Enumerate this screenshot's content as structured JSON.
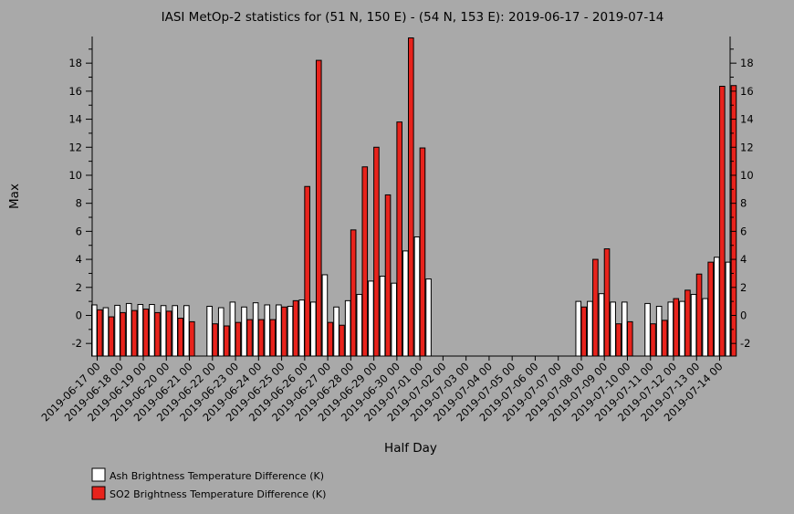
{
  "chart_data": {
    "type": "bar",
    "title": "IASI MetOp-2 statistics for (51 N, 150 E) - (54 N, 153 E): 2019-06-17 - 2019-07-14",
    "xlabel": "Half Day",
    "ylabel": "Max",
    "ylim": [
      -2.9,
      19.9
    ],
    "yticks": [
      -2,
      0,
      2,
      4,
      6,
      8,
      10,
      12,
      14,
      16,
      18
    ],
    "categories": [
      "2019-06-17 00",
      "2019-06-17 12",
      "2019-06-18 00",
      "2019-06-18 12",
      "2019-06-19 00",
      "2019-06-19 12",
      "2019-06-20 00",
      "2019-06-20 12",
      "2019-06-21 00",
      "2019-06-21 12",
      "2019-06-22 00",
      "2019-06-22 12",
      "2019-06-23 00",
      "2019-06-23 12",
      "2019-06-24 00",
      "2019-06-24 12",
      "2019-06-25 00",
      "2019-06-25 12",
      "2019-06-26 00",
      "2019-06-26 12",
      "2019-06-27 00",
      "2019-06-27 12",
      "2019-06-28 00",
      "2019-06-28 12",
      "2019-06-29 00",
      "2019-06-29 12",
      "2019-06-30 00",
      "2019-06-30 12",
      "2019-07-01 00",
      "2019-07-01 12",
      "2019-07-02 00",
      "2019-07-02 12",
      "2019-07-03 00",
      "2019-07-03 12",
      "2019-07-04 00",
      "2019-07-04 12",
      "2019-07-05 00",
      "2019-07-05 12",
      "2019-07-06 00",
      "2019-07-06 12",
      "2019-07-07 00",
      "2019-07-07 12",
      "2019-07-08 00",
      "2019-07-08 12",
      "2019-07-09 00",
      "2019-07-09 12",
      "2019-07-10 00",
      "2019-07-10 12",
      "2019-07-11 00",
      "2019-07-11 12",
      "2019-07-12 00",
      "2019-07-12 12",
      "2019-07-13 00",
      "2019-07-13 12",
      "2019-07-14 00",
      "2019-07-14 12"
    ],
    "tick_labels": [
      "2019-06-17 00",
      "2019-06-18 00",
      "2019-06-19 00",
      "2019-06-20 00",
      "2019-06-21 00",
      "2019-06-22 00",
      "2019-06-23 00",
      "2019-06-24 00",
      "2019-06-25 00",
      "2019-06-26 00",
      "2019-06-27 00",
      "2019-06-28 00",
      "2019-06-29 00",
      "2019-06-30 00",
      "2019-07-01 00",
      "2019-07-02 00",
      "2019-07-03 00",
      "2019-07-04 00",
      "2019-07-05 00",
      "2019-07-06 00",
      "2019-07-07 00",
      "2019-07-08 00",
      "2019-07-09 00",
      "2019-07-10 00",
      "2019-07-11 00",
      "2019-07-12 00",
      "2019-07-13 00",
      "2019-07-14 00"
    ],
    "series": [
      {
        "name": "Ash Brightness Temperature Difference (K)",
        "color": "#ffffff",
        "values": [
          0.75,
          0.55,
          0.72,
          0.85,
          0.78,
          0.78,
          0.7,
          0.7,
          0.7,
          null,
          0.65,
          0.55,
          0.95,
          0.6,
          0.9,
          0.75,
          0.75,
          0.65,
          1.1,
          0.95,
          2.9,
          0.6,
          1.05,
          1.5,
          2.45,
          2.8,
          2.3,
          4.6,
          5.6,
          2.6,
          null,
          null,
          null,
          null,
          null,
          null,
          null,
          null,
          null,
          null,
          null,
          null,
          1.0,
          1.0,
          1.55,
          0.95,
          0.95,
          null,
          0.85,
          0.65,
          0.95,
          1.0,
          1.5,
          1.2,
          4.15,
          3.8
        ]
      },
      {
        "name": "SO2 Brightness Temperature Difference (K)",
        "color": "#e8231c",
        "values": [
          0.4,
          -0.1,
          0.2,
          0.35,
          0.45,
          0.2,
          0.3,
          -0.2,
          -0.45,
          null,
          -0.6,
          -0.75,
          -0.5,
          -0.3,
          -0.3,
          -0.3,
          0.6,
          1.05,
          9.2,
          18.2,
          -0.5,
          -0.7,
          6.1,
          10.6,
          12.0,
          8.6,
          13.8,
          19.8,
          11.95,
          null,
          null,
          null,
          null,
          null,
          null,
          null,
          null,
          null,
          null,
          null,
          null,
          null,
          0.6,
          4.0,
          4.75,
          -0.6,
          -0.45,
          null,
          -0.6,
          -0.35,
          1.2,
          1.8,
          2.95,
          3.8,
          16.35,
          16.4
        ]
      }
    ],
    "legend": "bottom-left",
    "grid": false
  }
}
